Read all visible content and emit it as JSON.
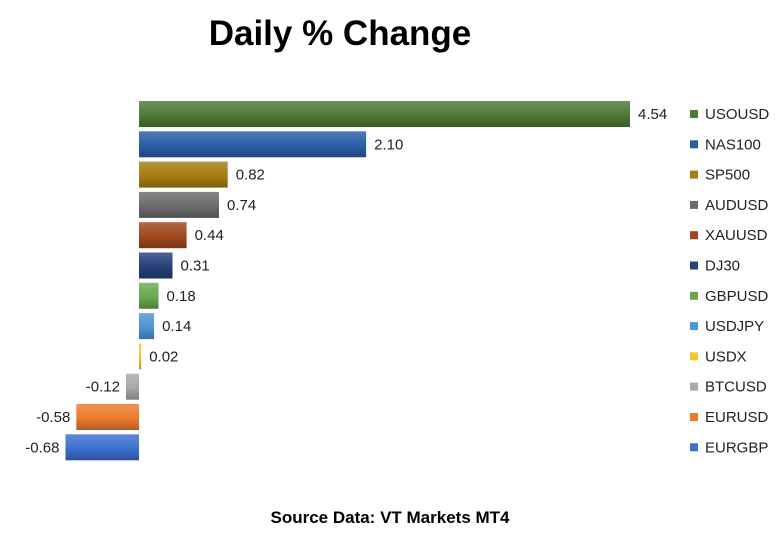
{
  "chart_data": {
    "type": "bar",
    "orientation": "horizontal",
    "title": "Daily % Change",
    "source": "Source Data: VT Markets MT4",
    "xlabel": "",
    "ylabel": "",
    "grid": false,
    "legend_position": "right",
    "categories": [
      "USOUSD",
      "NAS100",
      "SP500",
      "AUDUSD",
      "XAUUSD",
      "DJ30",
      "GBPUSD",
      "USDJPY",
      "USDX",
      "BTCUSD",
      "EURUSD",
      "EURGBP"
    ],
    "values": [
      4.54,
      2.1,
      0.82,
      0.74,
      0.44,
      0.31,
      0.18,
      0.14,
      0.02,
      -0.12,
      -0.58,
      -0.68
    ],
    "value_labels": [
      "4.54",
      "2.10",
      "0.82",
      "0.74",
      "0.44",
      "0.31",
      "0.18",
      "0.14",
      "0.02",
      "-0.12",
      "-0.58",
      "-0.68"
    ],
    "colors": [
      "#4e7a35",
      "#2a5ea8",
      "#a77d12",
      "#6b6b6b",
      "#a0471d",
      "#27407b",
      "#6aa84f",
      "#4f94d6",
      "#f2c62c",
      "#a8a8a8",
      "#ec7a2c",
      "#3e6fd0"
    ]
  }
}
